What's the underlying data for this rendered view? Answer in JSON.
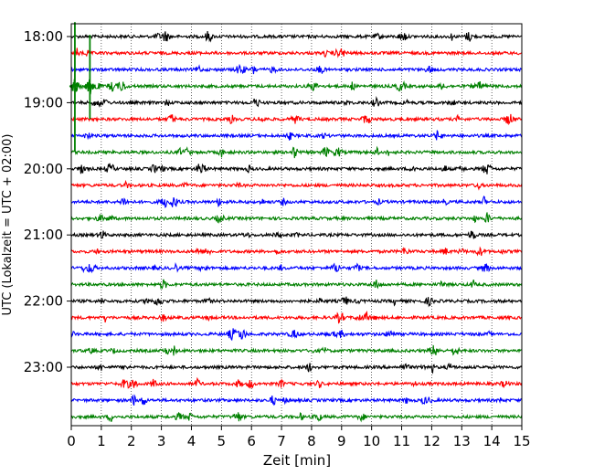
{
  "chart_data": {
    "type": "line",
    "title": "",
    "xlabel": "Zeit  [min]",
    "ylabel": "UTC (Lokalzeit = UTC + 02:00)",
    "xlim": [
      0,
      15
    ],
    "x_ticks": [
      0,
      1,
      2,
      3,
      4,
      5,
      6,
      7,
      8,
      9,
      10,
      11,
      12,
      13,
      14,
      15
    ],
    "y_tick_labels": [
      "18:00",
      "19:00",
      "20:00",
      "21:00",
      "22:00",
      "23:00"
    ],
    "grid": "vertical dotted lines at each minute",
    "series_colors": [
      "#000000",
      "#ff0000",
      "#0000ff",
      "#008000"
    ],
    "traces": [
      {
        "label": "18:00",
        "color": "#000000"
      },
      {
        "label": "18:15",
        "color": "#ff0000"
      },
      {
        "label": "18:30",
        "color": "#0000ff"
      },
      {
        "label": "18:45",
        "color": "#008000"
      },
      {
        "label": "19:00",
        "color": "#000000"
      },
      {
        "label": "19:15",
        "color": "#ff0000"
      },
      {
        "label": "19:30",
        "color": "#0000ff"
      },
      {
        "label": "19:45",
        "color": "#008000"
      },
      {
        "label": "20:00",
        "color": "#000000"
      },
      {
        "label": "20:15",
        "color": "#ff0000"
      },
      {
        "label": "20:30",
        "color": "#0000ff"
      },
      {
        "label": "20:45",
        "color": "#008000"
      },
      {
        "label": "21:00",
        "color": "#000000"
      },
      {
        "label": "21:15",
        "color": "#ff0000"
      },
      {
        "label": "21:30",
        "color": "#0000ff"
      },
      {
        "label": "21:45",
        "color": "#008000"
      },
      {
        "label": "22:00",
        "color": "#000000"
      },
      {
        "label": "22:15",
        "color": "#ff0000"
      },
      {
        "label": "22:30",
        "color": "#0000ff"
      },
      {
        "label": "22:45",
        "color": "#008000"
      },
      {
        "label": "23:00",
        "color": "#000000"
      },
      {
        "label": "23:15",
        "color": "#ff0000"
      },
      {
        "label": "23:30",
        "color": "#0000ff"
      },
      {
        "label": "23:45",
        "color": "#008000"
      }
    ]
  }
}
